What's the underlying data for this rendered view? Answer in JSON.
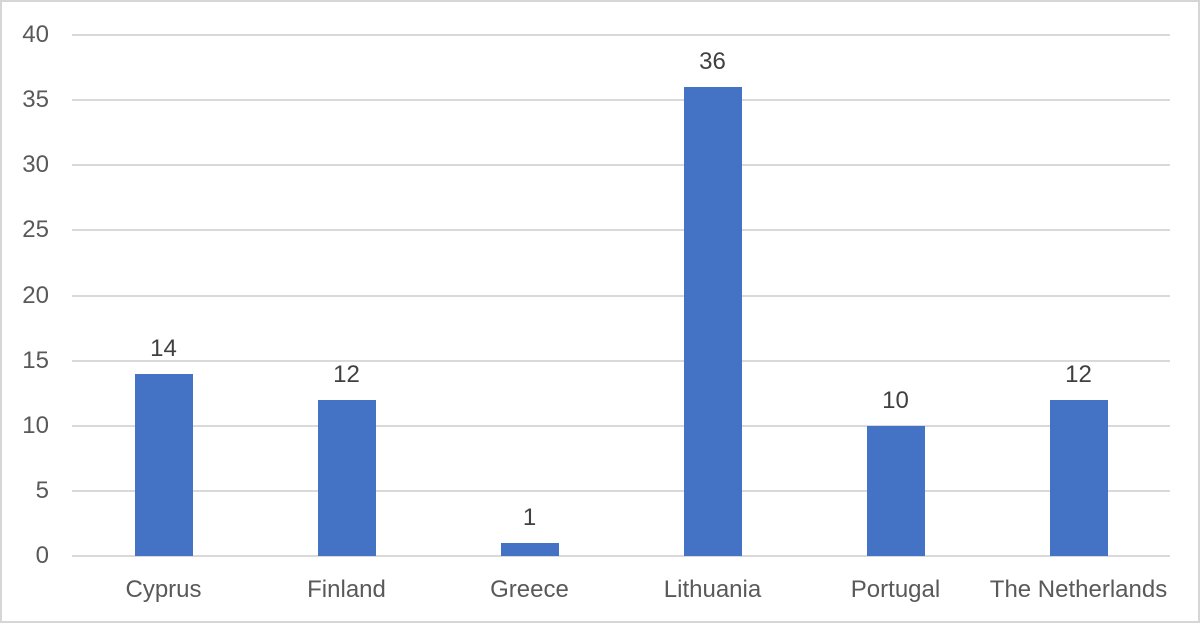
{
  "chart_data": {
    "type": "bar",
    "title": "",
    "xlabel": "",
    "ylabel": "",
    "categories": [
      "Cyprus",
      "Finland",
      "Greece",
      "Lithuania",
      "Portugal",
      "The Netherlands"
    ],
    "values": [
      14,
      12,
      1,
      36,
      10,
      12
    ],
    "data_labels_shown": true,
    "ylim": [
      0,
      40
    ],
    "ytick_step": 5,
    "yticks": [
      0,
      5,
      10,
      15,
      20,
      25,
      30,
      35,
      40
    ],
    "grid": "horizontal",
    "legend_position": "none"
  },
  "style": {
    "bar_color": "#4472C4",
    "gridline_color": "#D9D9D9",
    "axis_text_color": "#595959",
    "data_label_color": "#404040",
    "frame_border_color": "#D6D6D6",
    "background_color": "#FFFFFF"
  }
}
